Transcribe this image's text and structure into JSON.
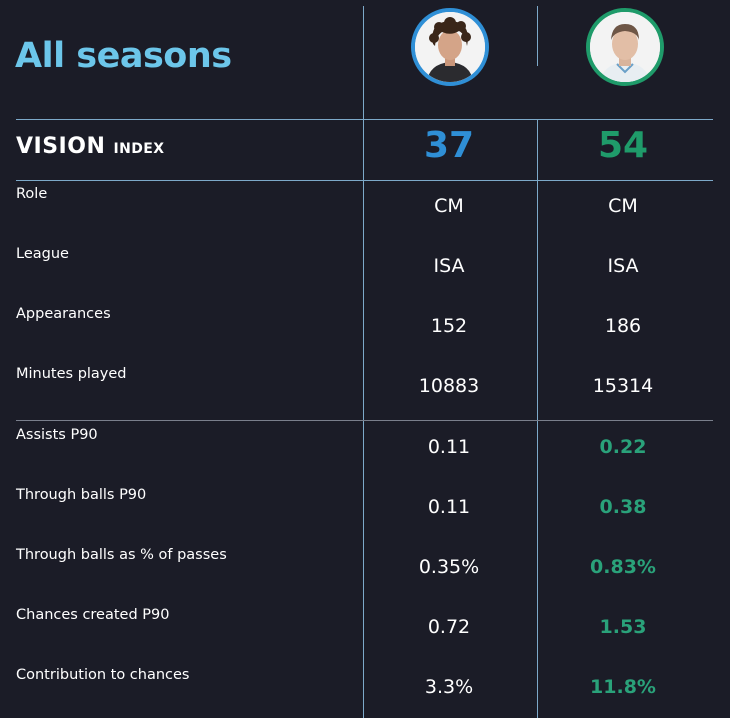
{
  "title": "All seasons",
  "index": {
    "main": "VISION",
    "suffix": "INDEX"
  },
  "colors": {
    "player1": "#2f8fd6",
    "player2": "#1f9b6a",
    "title": "#6cc6ea",
    "best": "#2aa27a"
  },
  "players": [
    {
      "avatar_icon": "player-photo-curly-hair",
      "index_value": "37"
    },
    {
      "avatar_icon": "player-photo-short-hair",
      "index_value": "54"
    }
  ],
  "rows": [
    {
      "label": "Role",
      "p1": "CM",
      "p2": "CM",
      "best": ""
    },
    {
      "label": "League",
      "p1": "ISA",
      "p2": "ISA",
      "best": ""
    },
    {
      "label": "Appearances",
      "p1": "152",
      "p2": "186",
      "best": ""
    },
    {
      "label": "Minutes played",
      "p1": "10883",
      "p2": "15314",
      "best": ""
    },
    {
      "label": "Assists P90",
      "p1": "0.11",
      "p2": "0.22",
      "best": "p2"
    },
    {
      "label": "Through balls P90",
      "p1": "0.11",
      "p2": "0.38",
      "best": "p2"
    },
    {
      "label": "Through balls as % of passes",
      "p1": "0.35%",
      "p2": "0.83%",
      "best": "p2"
    },
    {
      "label": "Chances created P90",
      "p1": "0.72",
      "p2": "1.53",
      "best": "p2"
    },
    {
      "label": "Contribution to chances",
      "p1": "3.3%",
      "p2": "11.8%",
      "best": "p2"
    }
  ]
}
